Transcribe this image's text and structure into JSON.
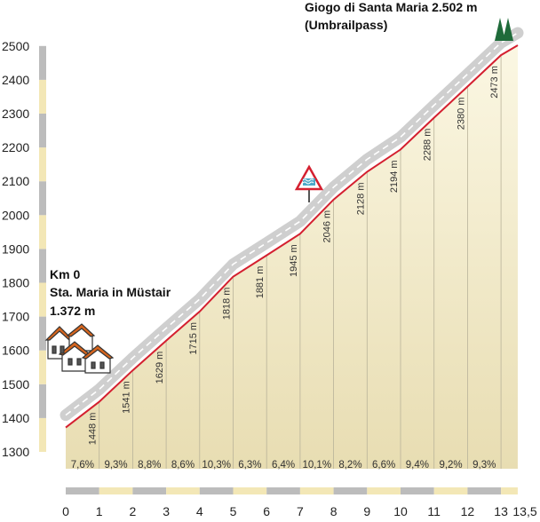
{
  "chart_data": {
    "type": "area",
    "title_lines": [
      "Giogo di Santa Maria 2.502 m",
      "(Umbrailpass)"
    ],
    "start_lines": [
      "Km 0",
      "Sta. Maria in Müstair",
      "1.372 m"
    ],
    "y_ticks": [
      1300,
      1400,
      1500,
      1600,
      1700,
      1800,
      1900,
      2000,
      2100,
      2200,
      2300,
      2400,
      2500
    ],
    "x_ticks": [
      "0",
      "1",
      "2",
      "3",
      "4",
      "5",
      "6",
      "7",
      "8",
      "9",
      "10",
      "11",
      "12",
      "13",
      "13,5"
    ],
    "ylim": [
      1300,
      2500
    ],
    "xlim": [
      0,
      13.5
    ],
    "profile": {
      "x": [
        0,
        1,
        2,
        3,
        4,
        5,
        6,
        7,
        8,
        9,
        10,
        11,
        12,
        13,
        13.5
      ],
      "y": [
        1372,
        1448,
        1541,
        1629,
        1715,
        1818,
        1881,
        1945,
        2046,
        2128,
        2194,
        2288,
        2380,
        2473,
        2502
      ]
    },
    "elevation_labels": [
      {
        "km": 1,
        "text": "1448 m"
      },
      {
        "km": 2,
        "text": "1541 m"
      },
      {
        "km": 3,
        "text": "1629 m"
      },
      {
        "km": 4,
        "text": "1715 m"
      },
      {
        "km": 5,
        "text": "1818 m"
      },
      {
        "km": 6,
        "text": "1881 m"
      },
      {
        "km": 7,
        "text": "1945 m"
      },
      {
        "km": 8,
        "text": "2046 m"
      },
      {
        "km": 9,
        "text": "2128 m"
      },
      {
        "km": 10,
        "text": "2194 m"
      },
      {
        "km": 11,
        "text": "2288 m"
      },
      {
        "km": 12,
        "text": "2380 m"
      },
      {
        "km": 13,
        "text": "2473 m"
      }
    ],
    "gradients": [
      "7,6%",
      "9,3%",
      "8,8%",
      "8,6%",
      "10,3%",
      "6,3%",
      "6,4%",
      "10,1%",
      "8,2%",
      "6,6%",
      "9,4%",
      "9,2%",
      "9,3%"
    ],
    "colors": {
      "line": "#d42030",
      "fill_top": "#fbf7e3",
      "fill_bottom": "#e8ddb2",
      "band": "#cfcfcf",
      "dash": "#ffffff",
      "axis_gray": "#bcbcbc",
      "axis_cream": "#f3e7b6",
      "tree": "#1f6b3a",
      "house_roof": "#d6651e"
    },
    "icons": [
      "houses-icon",
      "water-warning-sign-icon",
      "mountain-trees-icon"
    ]
  }
}
